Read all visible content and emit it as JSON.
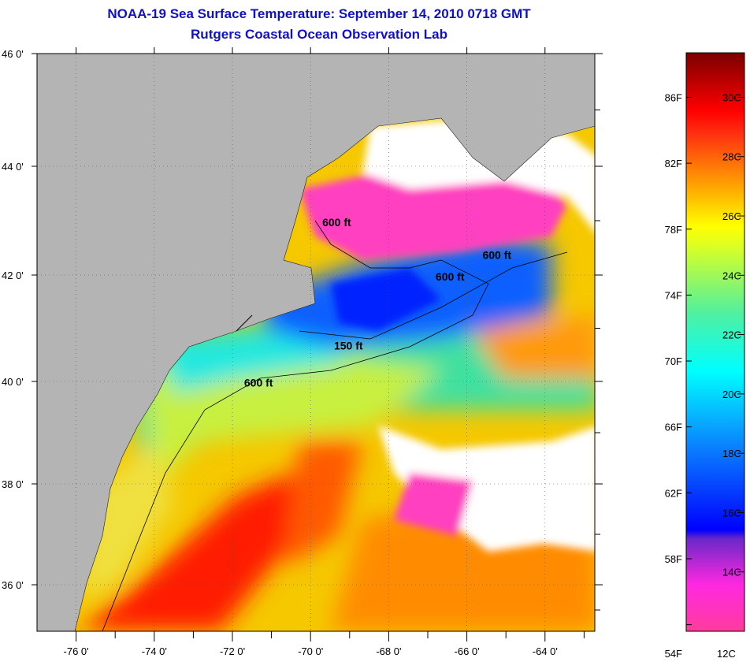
{
  "header": {
    "title": "NOAA-19 Sea Surface Temperature:  September 14, 2010 0718 GMT",
    "subtitle": "Rutgers Coastal Ocean Observation Lab"
  },
  "map": {
    "lon_range": [
      -77,
      -62.7
    ],
    "lat_range": [
      35.1,
      46
    ],
    "lon_ticks": [
      {
        "v": -76,
        "label": "-76 0'"
      },
      {
        "v": -74,
        "label": "-74 0'"
      },
      {
        "v": -72,
        "label": "-72 0'"
      },
      {
        "v": -70,
        "label": "-70 0'"
      },
      {
        "v": -68,
        "label": "-68 0'"
      },
      {
        "v": -66,
        "label": "-66 0'"
      },
      {
        "v": -64,
        "label": "-64 0'"
      }
    ],
    "lat_ticks": [
      {
        "v": 46,
        "label": "46 0'"
      },
      {
        "v": 44,
        "label": "44 0'"
      },
      {
        "v": 42,
        "label": "42 0'"
      },
      {
        "v": 40,
        "label": "40 0'"
      },
      {
        "v": 38,
        "label": "38 0'"
      },
      {
        "v": 36,
        "label": "36 0'"
      }
    ],
    "contour_labels": [
      {
        "text": "600 ft",
        "lon": -69.7,
        "lat": 42.9
      },
      {
        "text": "600 ft",
        "lon": -65.6,
        "lat": 42.3
      },
      {
        "text": "600 ft",
        "lon": -66.8,
        "lat": 41.9
      },
      {
        "text": "150 ft",
        "lon": -69.4,
        "lat": 40.6
      },
      {
        "text": "600 ft",
        "lon": -71.7,
        "lat": 39.9
      }
    ],
    "colors": {
      "land": "#b4b4b4",
      "cloud": "#ffffff"
    }
  },
  "colorbar": {
    "f_labels": [
      {
        "v": 86,
        "label": "86F"
      },
      {
        "v": 82,
        "label": "82F"
      },
      {
        "v": 78,
        "label": "78F"
      },
      {
        "v": 74,
        "label": "74F"
      },
      {
        "v": 70,
        "label": "70F"
      },
      {
        "v": 66,
        "label": "66F"
      },
      {
        "v": 62,
        "label": "62F"
      },
      {
        "v": 58,
        "label": "58F"
      },
      {
        "v": 54,
        "label": "54F"
      }
    ],
    "c_labels": [
      {
        "v": 30,
        "label": "30C"
      },
      {
        "v": 28,
        "label": "28C"
      },
      {
        "v": 26,
        "label": "26C"
      },
      {
        "v": 24,
        "label": "24C"
      },
      {
        "v": 22,
        "label": "22C"
      },
      {
        "v": 20,
        "label": "20C"
      },
      {
        "v": 18,
        "label": "18C"
      },
      {
        "v": 16,
        "label": "16C"
      },
      {
        "v": 14,
        "label": "14C"
      },
      {
        "v": 12,
        "label": "12C"
      }
    ],
    "range_c": [
      12,
      31.5
    ]
  }
}
